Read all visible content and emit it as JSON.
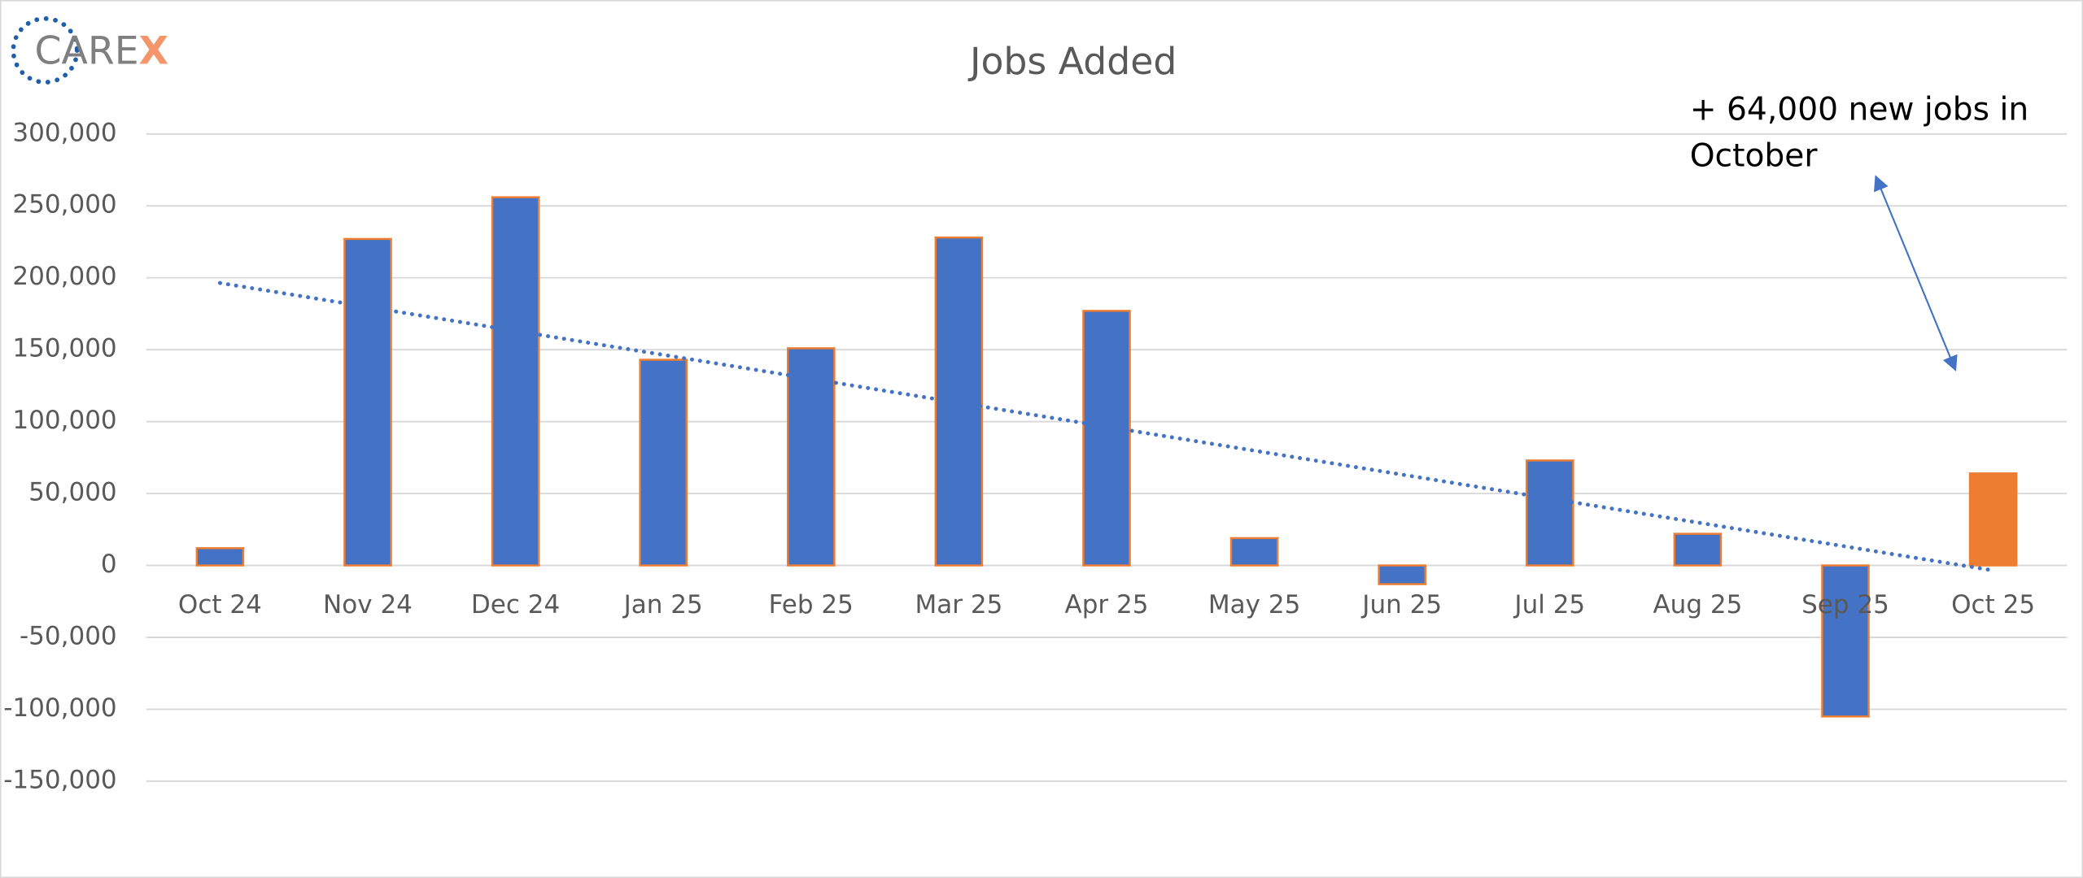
{
  "chart_data": {
    "type": "bar",
    "title": "Jobs Added",
    "logo_text": "CARE",
    "logo_accent": "X",
    "categories": [
      "Oct 24",
      "Nov 24",
      "Dec 24",
      "Jan 25",
      "Feb 25",
      "Mar 25",
      "Apr 25",
      "May 25",
      "Jun 25",
      "Jul 25",
      "Aug 25",
      "Sep 25",
      "Oct 25"
    ],
    "values": [
      12000,
      227000,
      256000,
      143000,
      151000,
      228000,
      177000,
      19000,
      -13000,
      73000,
      22000,
      -105000,
      64000
    ],
    "colors": [
      "#4472c4",
      "#4472c4",
      "#4472c4",
      "#4472c4",
      "#4472c4",
      "#4472c4",
      "#4472c4",
      "#4472c4",
      "#4472c4",
      "#4472c4",
      "#4472c4",
      "#4472c4",
      "#ed7d31"
    ],
    "edge_color": "#ed7d31",
    "trendline": true,
    "trendline_color": "#4472c4",
    "ylim": [
      -150000,
      300000
    ],
    "yticks": [
      {
        "value": 300000,
        "label": "300,000"
      },
      {
        "value": 250000,
        "label": "250,000"
      },
      {
        "value": 200000,
        "label": "200,000"
      },
      {
        "value": 150000,
        "label": "150,000"
      },
      {
        "value": 100000,
        "label": "100,000"
      },
      {
        "value": 50000,
        "label": "50,000"
      },
      0,
      {
        "value": -50000,
        "label": "-50,000"
      },
      {
        "value": -100000,
        "label": "-100,000"
      },
      {
        "value": -150000,
        "label": "-150,000"
      }
    ],
    "grid": true,
    "annotation": [
      "+ 64,000 new jobs in",
      "October"
    ]
  }
}
